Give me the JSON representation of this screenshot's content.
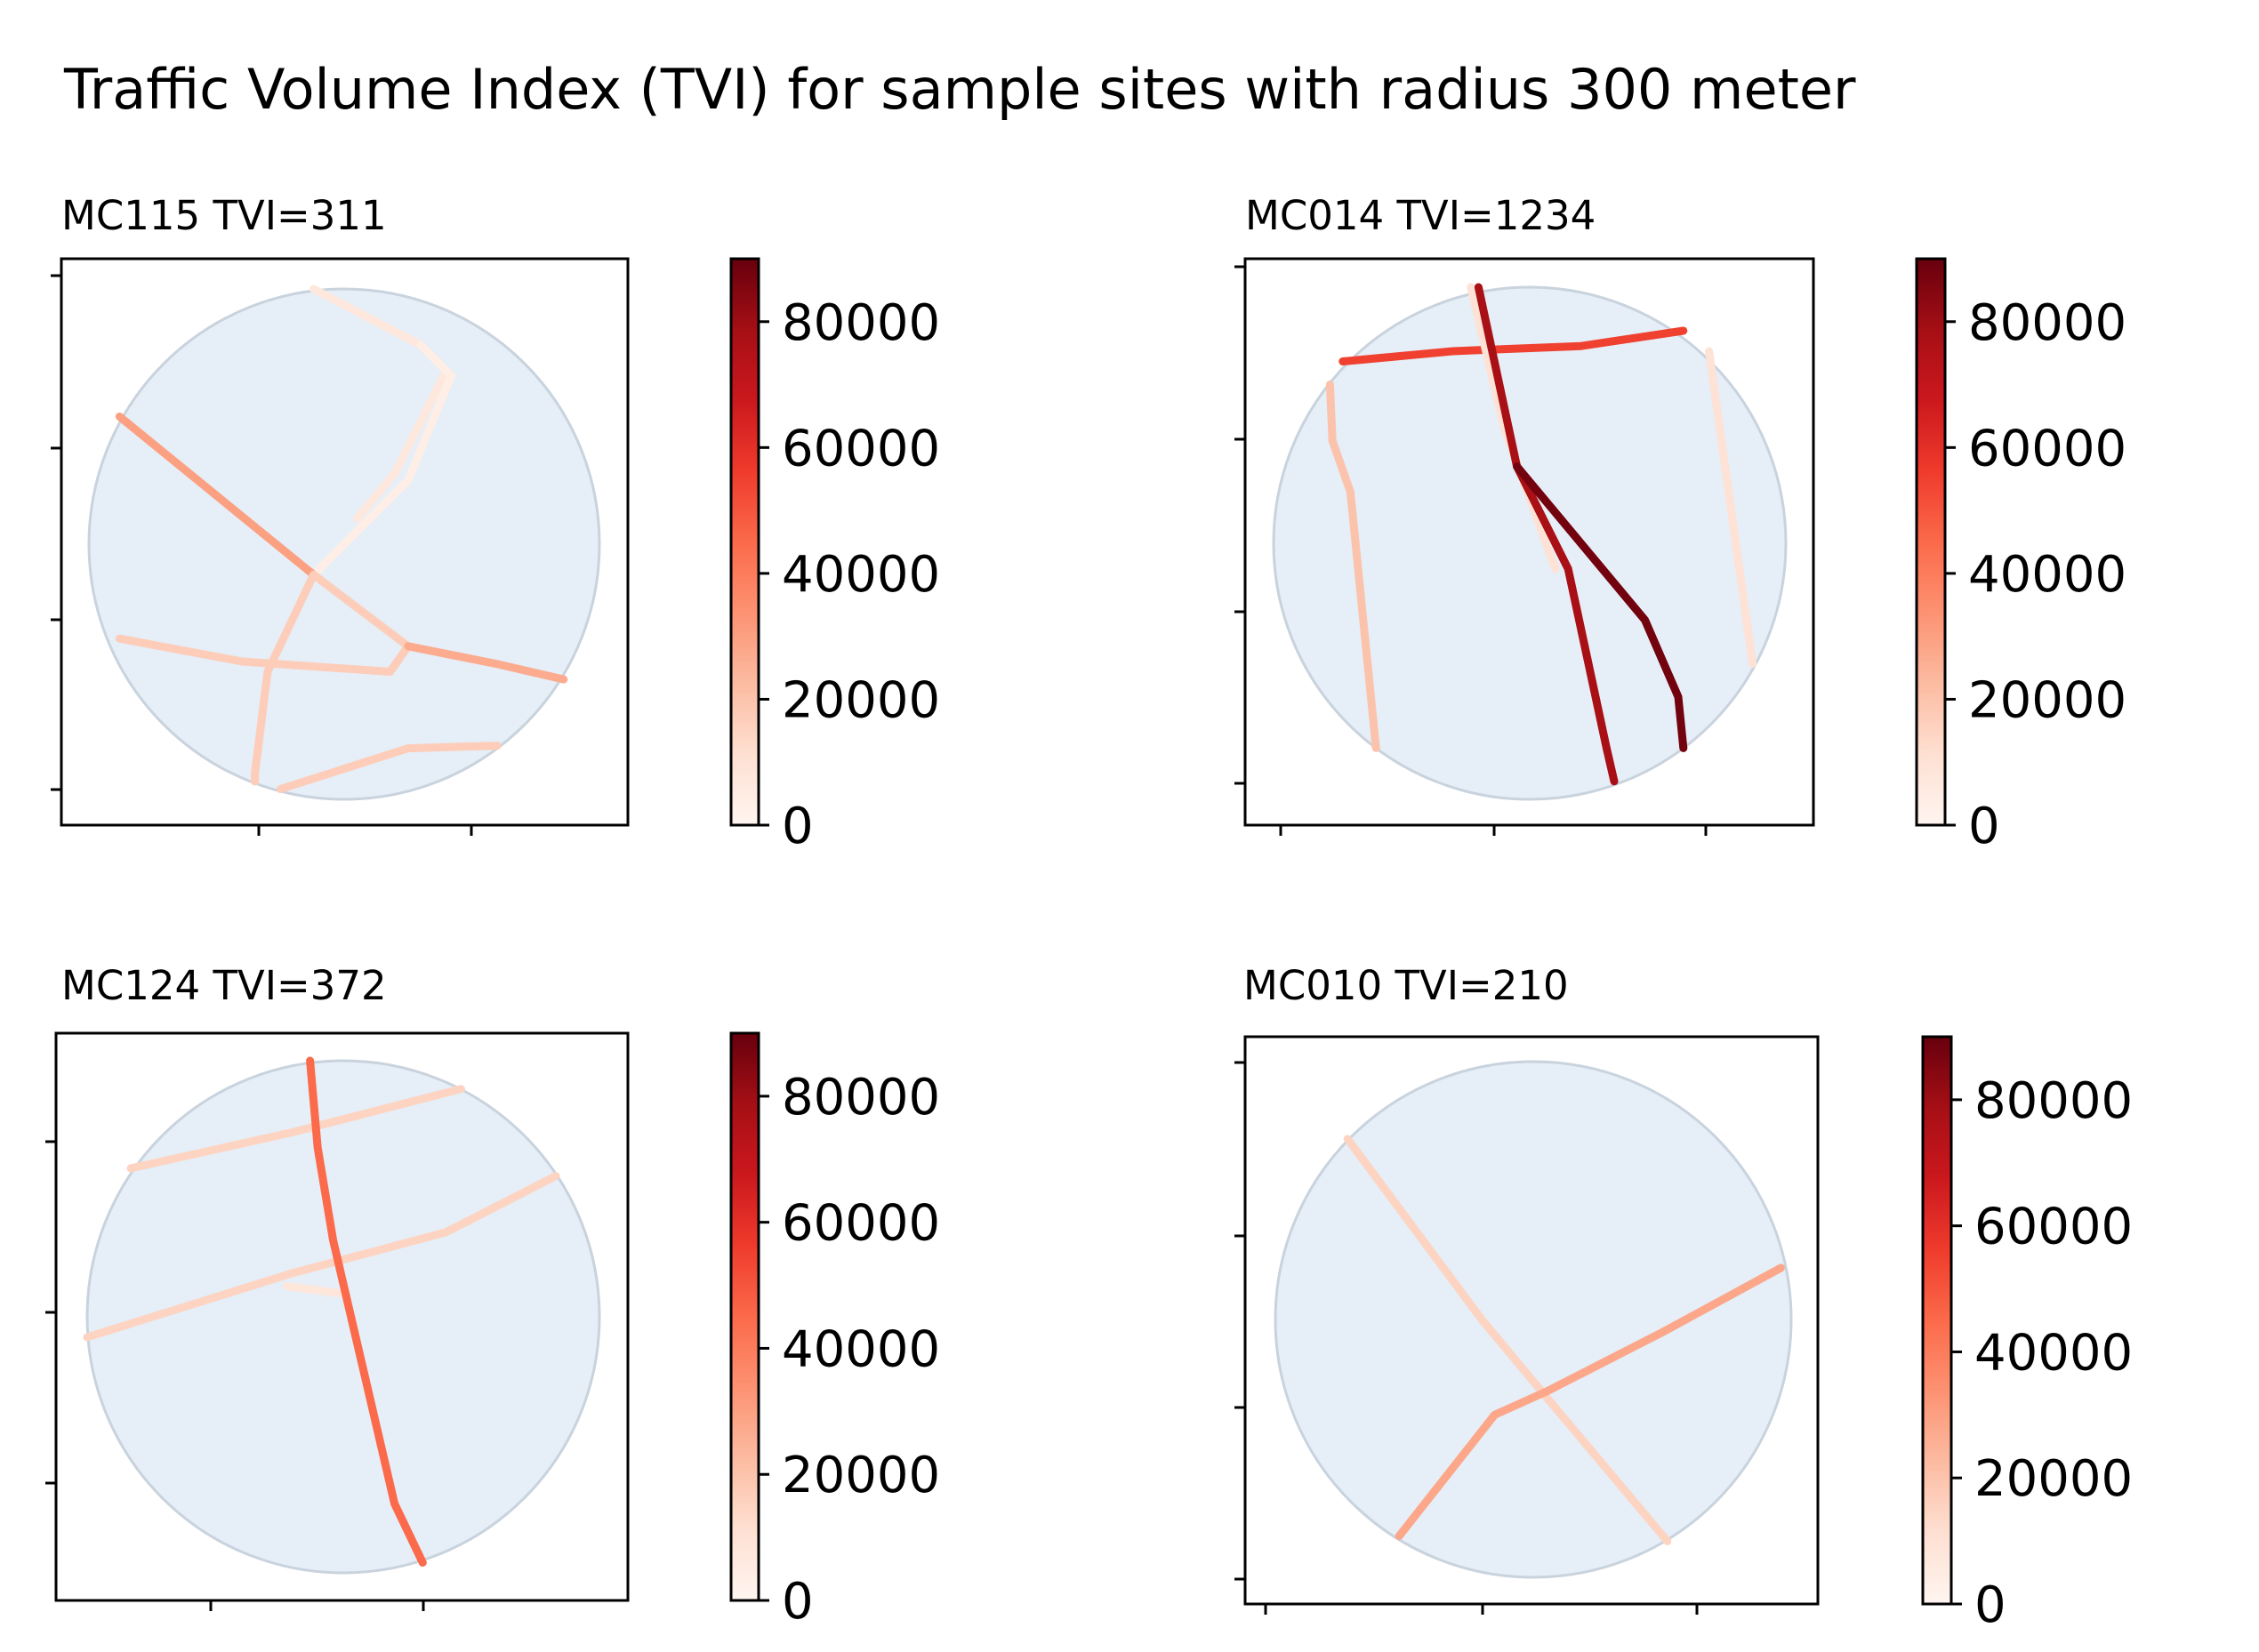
{
  "figure": {
    "title": "Traffic Volume Index (TVI) for sample sites with radius 300 meter"
  },
  "colormap": {
    "name": "Reds",
    "stops": [
      "#fff5f0",
      "#fee0d2",
      "#fcbba1",
      "#fc9272",
      "#fb6a4a",
      "#ef3b2c",
      "#cb181d",
      "#a50f15",
      "#67000d"
    ]
  },
  "circle_fill": "#e6eef7",
  "circle_stroke": "#c9d3dd",
  "chart_data": [
    {
      "type": "map",
      "title": "MC115 TVI=311",
      "colorbar": {
        "min": 0,
        "max": 90000,
        "ticks": [
          0,
          20000,
          40000,
          60000,
          80000
        ],
        "tick_labels": [
          "0",
          "20000",
          "40000",
          "60000",
          "80000"
        ]
      },
      "roads": [
        {
          "value": 7000,
          "points": [
            [
              -0.12,
              1.0
            ],
            [
              0.3,
              0.78
            ],
            [
              0.4,
              0.68
            ],
            [
              0.2,
              0.28
            ],
            [
              0.05,
              0.1
            ]
          ]
        },
        {
          "value": 4000,
          "points": [
            [
              0.3,
              0.78
            ],
            [
              0.42,
              0.66
            ],
            [
              0.25,
              0.25
            ],
            [
              -0.1,
              -0.1
            ]
          ]
        },
        {
          "value": 30000,
          "points": [
            [
              -0.88,
              0.5
            ],
            [
              -0.12,
              -0.12
            ]
          ]
        },
        {
          "value": 17000,
          "points": [
            [
              -0.12,
              -0.12
            ],
            [
              -0.3,
              -0.5
            ],
            [
              -0.35,
              -0.9
            ],
            [
              -0.35,
              -0.93
            ]
          ]
        },
        {
          "value": 17000,
          "points": [
            [
              -0.12,
              -0.12
            ],
            [
              0.25,
              -0.4
            ],
            [
              0.18,
              -0.5
            ],
            [
              -0.4,
              -0.46
            ],
            [
              -0.88,
              -0.37
            ]
          ]
        },
        {
          "value": 27000,
          "points": [
            [
              0.25,
              -0.4
            ],
            [
              0.6,
              -0.47
            ],
            [
              0.86,
              -0.53
            ]
          ]
        },
        {
          "value": 17000,
          "points": [
            [
              -0.25,
              -0.96
            ],
            [
              0.25,
              -0.8
            ],
            [
              0.6,
              -0.79
            ]
          ]
        }
      ]
    },
    {
      "type": "map",
      "title": "MC014 TVI=1234",
      "colorbar": {
        "min": 0,
        "max": 90000,
        "ticks": [
          0,
          20000,
          40000,
          60000,
          80000
        ],
        "tick_labels": [
          "0",
          "20000",
          "40000",
          "60000",
          "80000"
        ]
      },
      "roads": [
        {
          "value": 55000,
          "points": [
            [
              -0.73,
              0.71
            ],
            [
              -0.3,
              0.75
            ],
            [
              0.2,
              0.77
            ],
            [
              0.6,
              0.83
            ]
          ]
        },
        {
          "value": 20000,
          "points": [
            [
              -0.78,
              0.62
            ],
            [
              -0.77,
              0.4
            ],
            [
              -0.7,
              0.2
            ],
            [
              -0.6,
              -0.8
            ]
          ]
        },
        {
          "value": 10000,
          "points": [
            [
              0.7,
              0.75
            ],
            [
              0.87,
              -0.47
            ]
          ]
        },
        {
          "value": 10000,
          "points": [
            [
              -0.23,
              1.0
            ],
            [
              -0.1,
              0.45
            ],
            [
              0.1,
              -0.1
            ]
          ]
        },
        {
          "value": 78000,
          "points": [
            [
              -0.2,
              1.0
            ],
            [
              -0.05,
              0.3
            ],
            [
              0.15,
              -0.1
            ],
            [
              0.3,
              -0.8
            ],
            [
              0.33,
              -0.93
            ]
          ]
        },
        {
          "value": 88000,
          "points": [
            [
              -0.05,
              0.3
            ],
            [
              0.45,
              -0.3
            ],
            [
              0.58,
              -0.6
            ],
            [
              0.6,
              -0.8
            ]
          ]
        }
      ]
    },
    {
      "type": "map",
      "title": "MC124 TVI=372",
      "colorbar": {
        "min": 0,
        "max": 90000,
        "ticks": [
          0,
          20000,
          40000,
          60000,
          80000
        ],
        "tick_labels": [
          "0",
          "20000",
          "40000",
          "60000",
          "80000"
        ]
      },
      "roads": [
        {
          "value": 15000,
          "points": [
            [
              -0.83,
              0.58
            ],
            [
              -0.2,
              0.72
            ],
            [
              0.46,
              0.89
            ]
          ]
        },
        {
          "value": 15000,
          "points": [
            [
              -1.0,
              -0.08
            ],
            [
              -0.2,
              0.17
            ],
            [
              0.4,
              0.33
            ],
            [
              0.83,
              0.55
            ]
          ]
        },
        {
          "value": 8000,
          "points": [
            [
              -0.22,
              0.12
            ],
            [
              0.0,
              0.09
            ]
          ]
        },
        {
          "value": 45000,
          "points": [
            [
              -0.13,
              1.0
            ],
            [
              -0.1,
              0.66
            ],
            [
              -0.04,
              0.3
            ],
            [
              0.1,
              -0.3
            ],
            [
              0.2,
              -0.73
            ],
            [
              0.31,
              -0.96
            ]
          ]
        }
      ]
    },
    {
      "type": "map",
      "title": "MC010 TVI=210",
      "colorbar": {
        "min": 0,
        "max": 90000,
        "ticks": [
          0,
          20000,
          40000,
          60000,
          80000
        ],
        "tick_labels": [
          "0",
          "20000",
          "40000",
          "60000",
          "80000"
        ]
      },
      "roads": [
        {
          "value": 15000,
          "points": [
            [
              -0.72,
              0.7
            ],
            [
              -0.2,
              0.0
            ],
            [
              0.05,
              -0.3
            ],
            [
              0.52,
              -0.86
            ]
          ]
        },
        {
          "value": 28000,
          "points": [
            [
              -0.52,
              -0.84
            ],
            [
              -0.15,
              -0.37
            ],
            [
              0.05,
              -0.28
            ],
            [
              0.5,
              -0.05
            ],
            [
              0.96,
              0.2
            ]
          ]
        }
      ]
    }
  ]
}
